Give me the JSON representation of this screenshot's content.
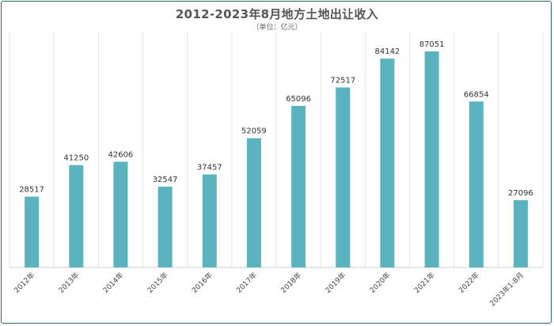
{
  "chart_data": {
    "type": "bar",
    "title": "2012-2023年8月地方土地出让收入",
    "subtitle": "（单位：亿元）",
    "categories": [
      "2012年",
      "2013年",
      "2014年",
      "2015年",
      "2016年",
      "2017年",
      "2018年",
      "2019年",
      "2020年",
      "2021年",
      "2022年",
      "2023年1-8月"
    ],
    "values": [
      28517,
      41250,
      42606,
      32547,
      37457,
      52059,
      65096,
      72517,
      84142,
      87051,
      66854,
      27096
    ],
    "ylim": [
      0,
      95000
    ],
    "grid": "vertical",
    "bar_color": "#5bb3c0",
    "grid_color": "#e6e6e6",
    "axis_color": "#cccccc"
  }
}
